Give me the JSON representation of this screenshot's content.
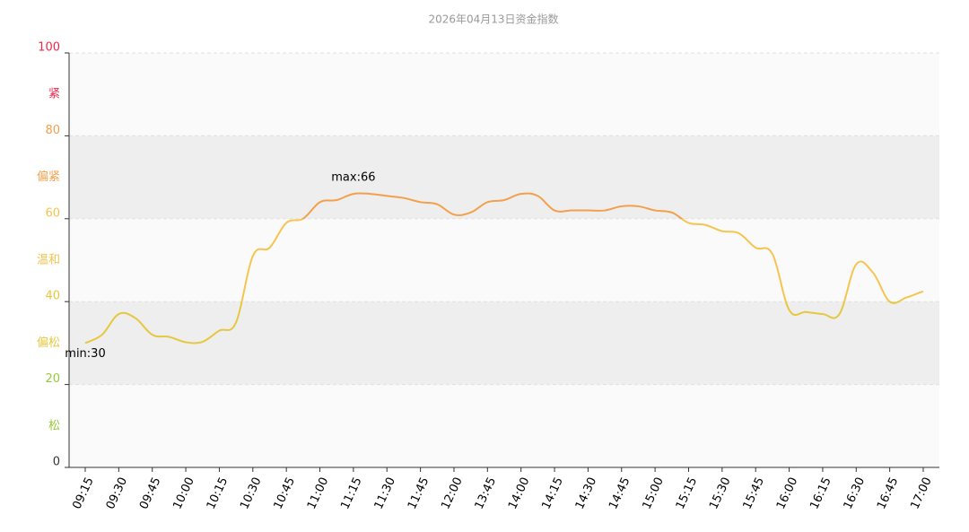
{
  "chart_data": {
    "type": "line",
    "title": "2026年04月13日资金指数",
    "categories": [
      "09:15",
      null,
      "09:30",
      null,
      "09:45",
      null,
      "10:00",
      null,
      "10:15",
      null,
      "10:30",
      null,
      "10:45",
      null,
      "11:00",
      null,
      "11:15",
      null,
      "11:30",
      null,
      "11:45",
      null,
      "12:00",
      null,
      "13:45",
      null,
      "14:00",
      null,
      "14:15",
      null,
      "14:30",
      null,
      "14:45",
      null,
      "15:00",
      null,
      "15:15",
      null,
      "15:30",
      null,
      "15:45",
      null,
      "16:00",
      null,
      "16:15",
      null,
      "16:30",
      null,
      "16:45",
      null,
      "17:00"
    ],
    "values": [
      30,
      32,
      37,
      36,
      32,
      31.5,
      30.2,
      30.3,
      33,
      35,
      51,
      53,
      59,
      60,
      64,
      64.5,
      66,
      66,
      65.5,
      65,
      64,
      63.5,
      61,
      61.5,
      64,
      64.5,
      66,
      65.5,
      62,
      62,
      62,
      62,
      63,
      63,
      62,
      61.5,
      59,
      58.5,
      57,
      56.5,
      53,
      51.5,
      38,
      37.5,
      37,
      37,
      49,
      47,
      40,
      41,
      42.5
    ],
    "ylim": [
      0,
      100
    ],
    "yticks": [
      0,
      20,
      40,
      60,
      80,
      100
    ],
    "zones": [
      {
        "label": "松",
        "min": 0,
        "max": 20,
        "color": "#97c93a"
      },
      {
        "label": "偏松",
        "min": 20,
        "max": 40,
        "color": "#e6c840"
      },
      {
        "label": "温和",
        "min": 40,
        "max": 60,
        "color": "#f6c44f"
      },
      {
        "label": "偏紧",
        "min": 60,
        "max": 80,
        "color": "#f3a04c"
      },
      {
        "label": "紧",
        "min": 80,
        "max": 100,
        "color": "#f0284a"
      }
    ],
    "annotations": [
      "min:30",
      "max:66"
    ]
  }
}
